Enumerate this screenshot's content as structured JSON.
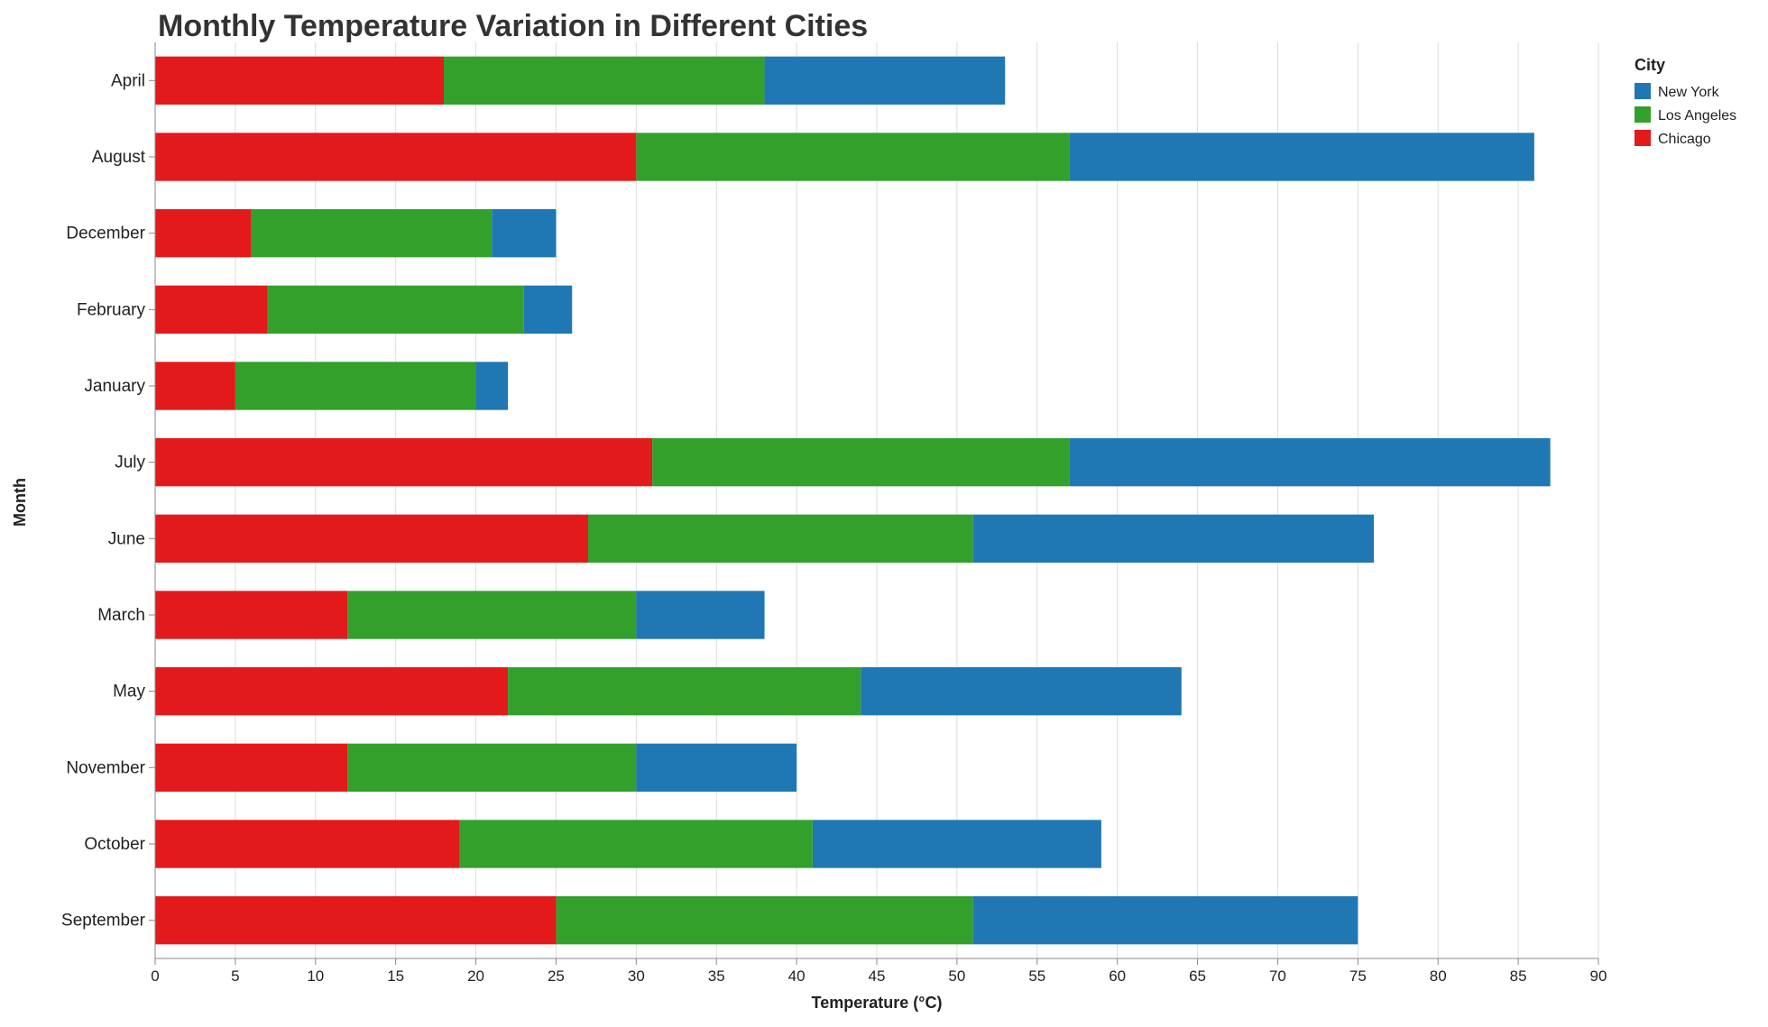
{
  "chart_data": {
    "type": "bar",
    "orientation": "horizontal",
    "stacked": true,
    "title": "Monthly Temperature Variation in Different Cities",
    "xlabel": "Temperature (°C)",
    "ylabel": "Month",
    "xlim": [
      0,
      90
    ],
    "x_ticks": [
      0,
      5,
      10,
      15,
      20,
      25,
      30,
      35,
      40,
      45,
      50,
      55,
      60,
      65,
      70,
      75,
      80,
      85,
      90
    ],
    "grid": true,
    "categories": [
      "April",
      "August",
      "December",
      "February",
      "January",
      "July",
      "June",
      "March",
      "May",
      "November",
      "October",
      "September"
    ],
    "series": [
      {
        "name": "Chicago",
        "color": "#e31a1c",
        "values": [
          18,
          30,
          6,
          7,
          5,
          31,
          27,
          12,
          22,
          12,
          19,
          25
        ]
      },
      {
        "name": "Los Angeles",
        "color": "#33a02c",
        "values": [
          20,
          27,
          15,
          16,
          15,
          26,
          24,
          18,
          22,
          18,
          22,
          26
        ]
      },
      {
        "name": "New York",
        "color": "#1f78b4",
        "values": [
          15,
          29,
          4,
          3,
          2,
          30,
          25,
          8,
          20,
          10,
          18,
          24
        ]
      }
    ],
    "legend": {
      "title": "City",
      "position": "top-right",
      "order": [
        "New York",
        "Los Angeles",
        "Chicago"
      ]
    }
  }
}
